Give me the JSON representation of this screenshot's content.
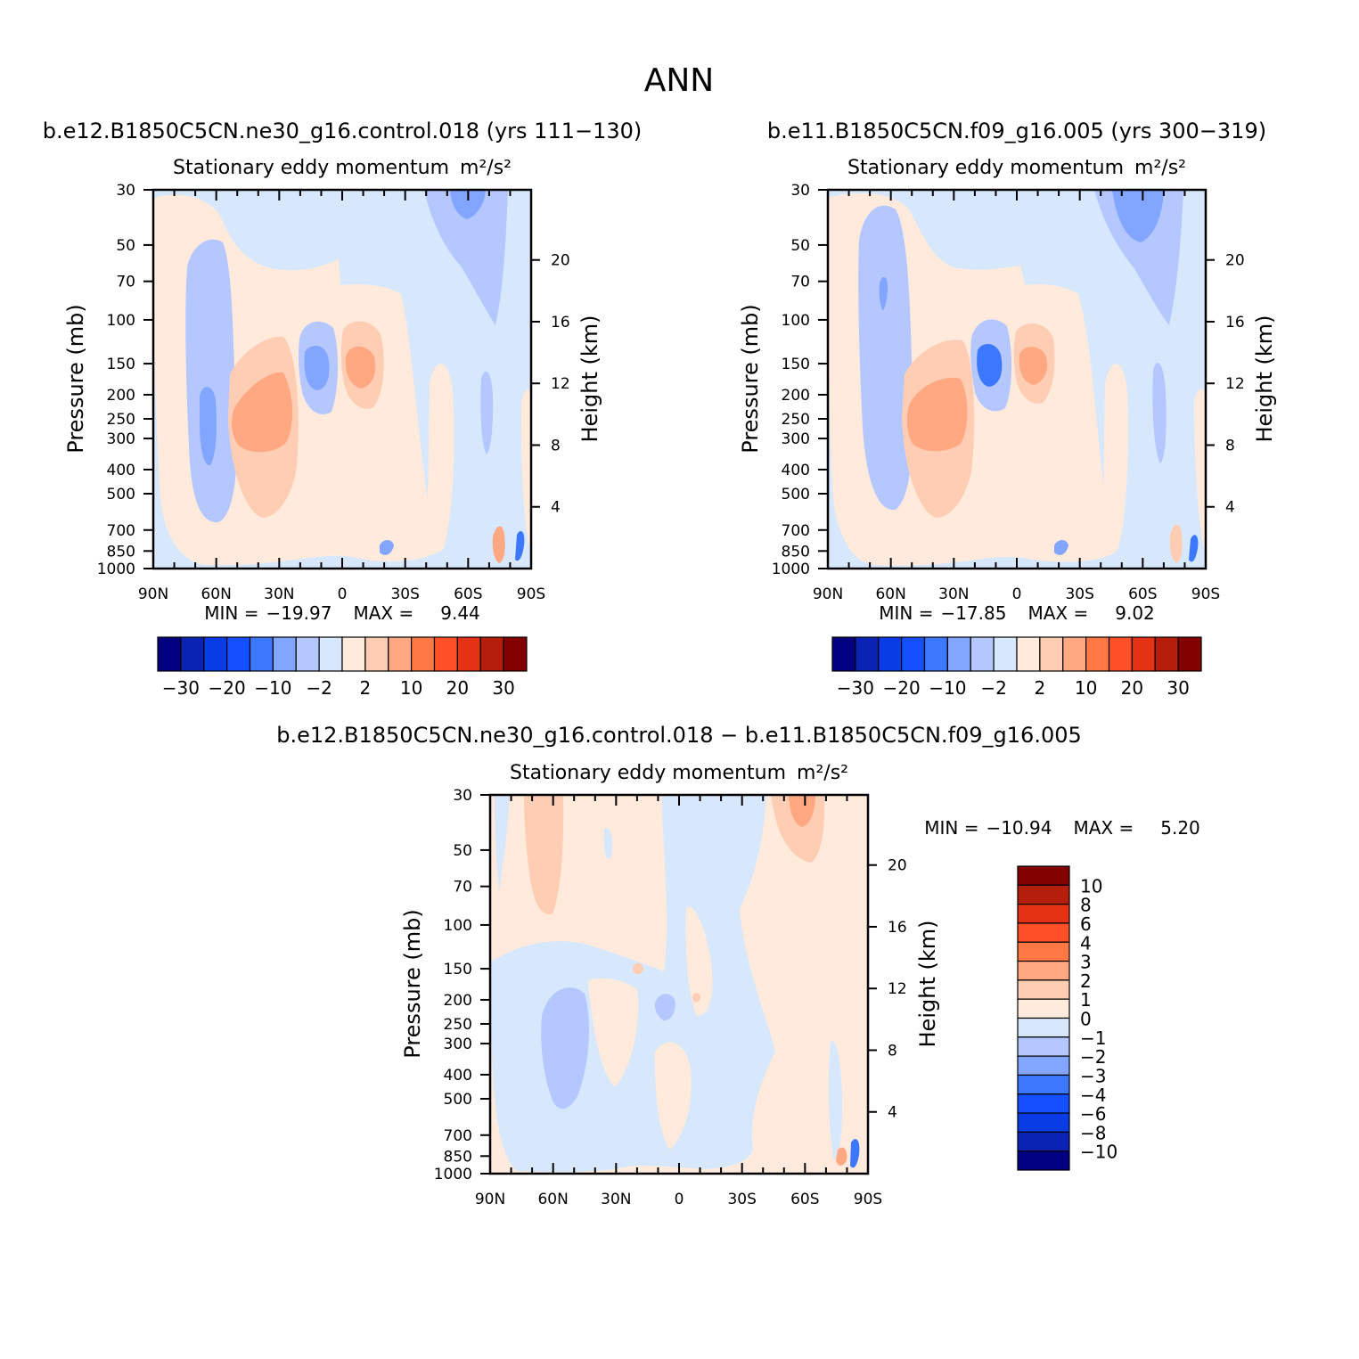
{
  "figure": {
    "title": "ANN"
  },
  "colors": {
    "abs_scale": [
      "#000080",
      "#0a23b4",
      "#0a3ce6",
      "#1450ff",
      "#3c78ff",
      "#82a5ff",
      "#b4c8ff",
      "#d7e8fc",
      "#ffeadc",
      "#ffcdb4",
      "#ffa882",
      "#ff7846",
      "#ff5028",
      "#e63214",
      "#b41e0a",
      "#820000"
    ],
    "diff_scale": [
      "#000080",
      "#0a23b4",
      "#0a3ce6",
      "#1450ff",
      "#3c78ff",
      "#82a5ff",
      "#b4c8ff",
      "#d7e8fc",
      "#ffeadc",
      "#ffcdb4",
      "#ffa882",
      "#ff7846",
      "#ff5028",
      "#e63214",
      "#b41e0a",
      "#820000"
    ]
  },
  "chart_data": [
    {
      "type": "contour",
      "case_title": "b.e12.B1850C5CN.ne30_g16.control.018 (yrs 111−130)",
      "title": "Stationary eddy momentum",
      "units": "m²/s²",
      "ylabel": "Pressure (mb)",
      "ylabel_right": "Height (km)",
      "x_ticks": [
        "90N",
        "60N",
        "30N",
        "0",
        "30S",
        "60S",
        "90S"
      ],
      "y_ticks": [
        "30",
        "50",
        "70",
        "100",
        "150",
        "200",
        "250",
        "300",
        "400",
        "500",
        "700",
        "850",
        "1000"
      ],
      "y_right_ticks": [
        "20",
        "16",
        "12",
        "8",
        "4"
      ],
      "stats": {
        "min_label": "MIN =",
        "min": "−19.97",
        "max_label": "MAX =",
        "max": "9.44"
      },
      "colorbar_labels": [
        "−30",
        "−20",
        "−10",
        "−2",
        "2",
        "10",
        "20",
        "30"
      ],
      "features": [
        {
          "lat": 70,
          "p": 250,
          "value": -6
        },
        {
          "lat": 25,
          "p": 250,
          "value": 6
        },
        {
          "lat": 8,
          "p": 150,
          "value": -6
        },
        {
          "lat": -5,
          "p": 150,
          "value": 6
        },
        {
          "lat": -45,
          "p": 50,
          "value": -3
        }
      ]
    },
    {
      "type": "contour",
      "case_title": "b.e11.B1850C5CN.f09_g16.005 (yrs 300−319)",
      "title": "Stationary eddy momentum",
      "units": "m²/s²",
      "ylabel": "Pressure (mb)",
      "ylabel_right": "Height (km)",
      "x_ticks": [
        "90N",
        "60N",
        "30N",
        "0",
        "30S",
        "60S",
        "90S"
      ],
      "y_ticks": [
        "30",
        "50",
        "70",
        "100",
        "150",
        "200",
        "250",
        "300",
        "400",
        "500",
        "700",
        "850",
        "1000"
      ],
      "y_right_ticks": [
        "20",
        "16",
        "12",
        "8",
        "4"
      ],
      "stats": {
        "min_label": "MIN =",
        "min": "−17.85",
        "max_label": "MAX =",
        "max": "9.02"
      },
      "colorbar_labels": [
        "−30",
        "−20",
        "−10",
        "−2",
        "2",
        "10",
        "20",
        "30"
      ],
      "features": [
        {
          "lat": 70,
          "p": 100,
          "value": -3
        },
        {
          "lat": 25,
          "p": 250,
          "value": 6
        },
        {
          "lat": 8,
          "p": 150,
          "value": -6
        },
        {
          "lat": -5,
          "p": 150,
          "value": 6
        },
        {
          "lat": -50,
          "p": 40,
          "value": -3
        }
      ]
    },
    {
      "type": "contour",
      "case_title": "b.e12.B1850C5CN.ne30_g16.control.018 − b.e11.B1850C5CN.f09_g16.005",
      "title": "Stationary eddy momentum",
      "units": "m²/s²",
      "ylabel": "Pressure (mb)",
      "ylabel_right": "Height (km)",
      "x_ticks": [
        "90N",
        "60N",
        "30N",
        "0",
        "30S",
        "60S",
        "90S"
      ],
      "y_ticks": [
        "30",
        "50",
        "70",
        "100",
        "150",
        "200",
        "250",
        "300",
        "400",
        "500",
        "700",
        "850",
        "1000"
      ],
      "y_right_ticks": [
        "20",
        "16",
        "12",
        "8",
        "4"
      ],
      "stats": {
        "min_label": "MIN =",
        "min": "−10.94",
        "max_label": "MAX =",
        "max": "5.20"
      },
      "colorbar_labels": [
        "10",
        "8",
        "6",
        "4",
        "3",
        "2",
        "1",
        "0",
        "−1",
        "−2",
        "−3",
        "−4",
        "−6",
        "−8",
        "−10"
      ],
      "features": [
        {
          "lat": 65,
          "p": 250,
          "value": -1.5
        },
        {
          "lat": 70,
          "p": 40,
          "value": 1.5
        },
        {
          "lat": -55,
          "p": 35,
          "value": 2.5
        }
      ]
    }
  ]
}
